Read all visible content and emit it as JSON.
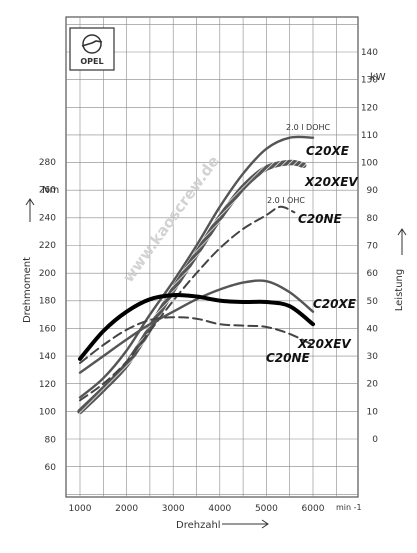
{
  "logo": {
    "brand": "OPEL"
  },
  "watermark": "www.kaoscrew.de",
  "chart_data": {
    "type": "line",
    "xlabel": "Drehzahl",
    "x_unit": "min -1",
    "ylabel_left": "Drehmoment",
    "y_unit_left": "Nm",
    "ylabel_right": "Leistung",
    "y_unit_right": "kW",
    "xlim": [
      1000,
      6000
    ],
    "ylim_left": [
      60,
      280
    ],
    "ylim_right": [
      0,
      140
    ],
    "x_ticks": [
      1000,
      2000,
      3000,
      4000,
      5000,
      6000
    ],
    "left_ticks": [
      60,
      80,
      100,
      120,
      140,
      160,
      180,
      200,
      220,
      240,
      260,
      280
    ],
    "right_ticks": [
      0,
      10,
      20,
      30,
      40,
      50,
      60,
      70,
      80,
      90,
      100,
      110,
      120,
      130,
      140
    ],
    "grid": true,
    "series": [
      {
        "name": "C20XE",
        "axis": "right",
        "style": "solid-gray",
        "x": [
          1000,
          1500,
          2000,
          2500,
          3000,
          3500,
          4000,
          4500,
          5000,
          5500,
          6000
        ],
        "values": [
          15,
          22,
          32,
          45,
          57,
          70,
          84,
          96,
          105,
          109,
          109
        ]
      },
      {
        "name": "X20XEV",
        "axis": "right",
        "style": "hatched",
        "x": [
          1000,
          1500,
          2000,
          2500,
          3000,
          3500,
          4000,
          4500,
          5000,
          5500,
          5800
        ],
        "values": [
          10,
          18,
          27,
          40,
          54,
          67,
          80,
          91,
          98,
          100,
          99
        ]
      },
      {
        "name": "C20NE",
        "axis": "right",
        "style": "dashed",
        "x": [
          1000,
          1500,
          2000,
          2500,
          3000,
          3500,
          4000,
          4500,
          5000,
          5300,
          5600
        ],
        "values": [
          14,
          20,
          28,
          39,
          50,
          60,
          69,
          76,
          81,
          84,
          82
        ]
      },
      {
        "name": "C20XE",
        "axis": "left",
        "style": "solid-gray",
        "x": [
          1000,
          1500,
          2000,
          2500,
          3000,
          3500,
          4000,
          4500,
          5000,
          5500,
          6000
        ],
        "values": [
          128,
          140,
          152,
          163,
          172,
          181,
          188,
          193,
          194,
          186,
          172
        ]
      },
      {
        "name": "X20XEV",
        "axis": "left",
        "style": "bold-black",
        "x": [
          1000,
          1500,
          2000,
          2500,
          3000,
          3500,
          4000,
          4500,
          5000,
          5500,
          6000
        ],
        "values": [
          138,
          158,
          172,
          181,
          184,
          183,
          180,
          179,
          179,
          176,
          163
        ]
      },
      {
        "name": "C20NE",
        "axis": "left",
        "style": "dashed",
        "x": [
          1000,
          1500,
          2000,
          2500,
          3000,
          3500,
          4000,
          4500,
          5000,
          5500,
          6000
        ],
        "values": [
          135,
          148,
          159,
          166,
          168,
          167,
          163,
          162,
          161,
          156,
          148
        ]
      }
    ],
    "annotations": [
      "2.0 l DOHC",
      "2.0 l OHC",
      "C20XE",
      "X20XEV",
      "C20NE",
      "C20XE",
      "X20XEV",
      "C20NE"
    ]
  }
}
